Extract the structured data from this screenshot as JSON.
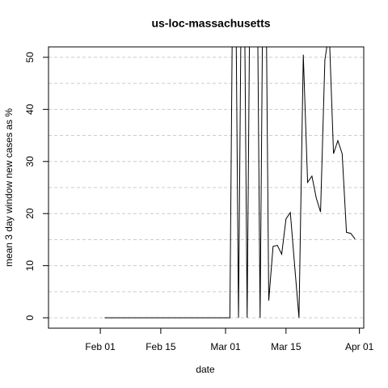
{
  "chart_data": {
    "type": "line",
    "title": "us-loc-massachusetts",
    "x_label": "date",
    "y_label": "mean  3  day window new cases as %",
    "x": [
      "Feb 02",
      "Feb 03",
      "Feb 04",
      "Feb 05",
      "Feb 06",
      "Feb 07",
      "Feb 08",
      "Feb 09",
      "Feb 10",
      "Feb 11",
      "Feb 12",
      "Feb 13",
      "Feb 14",
      "Feb 15",
      "Feb 16",
      "Feb 17",
      "Feb 18",
      "Feb 19",
      "Feb 20",
      "Feb 21",
      "Feb 22",
      "Feb 23",
      "Feb 24",
      "Feb 25",
      "Feb 26",
      "Feb 27",
      "Feb 28",
      "Feb 29",
      "Mar 01",
      "Mar 02",
      "Mar 03",
      "Mar 04",
      "Mar 05",
      "Mar 06",
      "Mar 07",
      "Mar 08",
      "Mar 09",
      "Mar 10",
      "Mar 11",
      "Mar 12",
      "Mar 13",
      "Mar 14",
      "Mar 15",
      "Mar 16",
      "Mar 17",
      "Mar 18",
      "Mar 19",
      "Mar 20",
      "Mar 21",
      "Mar 22",
      "Mar 23",
      "Mar 24",
      "Mar 25",
      "Mar 26",
      "Mar 27",
      "Mar 28",
      "Mar 29",
      "Mar 30",
      "Mar 31"
    ],
    "series": [
      {
        "name": "us-loc-massachusetts",
        "color": "#000000",
        "values": [
          0,
          0,
          0,
          0,
          0,
          0,
          0,
          0,
          0,
          0,
          0,
          0,
          0,
          0,
          0,
          0,
          0,
          0,
          0,
          0,
          0,
          0,
          0,
          0,
          0,
          0,
          0,
          0,
          0,
          0,
          100,
          0,
          100,
          0,
          100,
          100,
          0,
          100,
          3.3,
          13.7,
          13.9,
          12.2,
          19,
          20.2,
          10,
          0,
          50.5,
          26,
          27.2,
          23,
          20.3,
          49.5,
          55,
          31.5,
          34,
          31.5,
          16.4,
          16.2,
          15.1
        ]
      }
    ],
    "xlim": [
      "Jan 20",
      "Apr 02"
    ],
    "xticks": [
      "Feb 01",
      "Feb 15",
      "Mar 01",
      "Mar 15",
      "Apr 01"
    ],
    "ylim": [
      -2,
      52
    ],
    "yticks": [
      0,
      10,
      20,
      30,
      40,
      50
    ],
    "ygrid": [
      0,
      5,
      10,
      15,
      20,
      25,
      30,
      35,
      40,
      45,
      50
    ],
    "grid": true
  }
}
